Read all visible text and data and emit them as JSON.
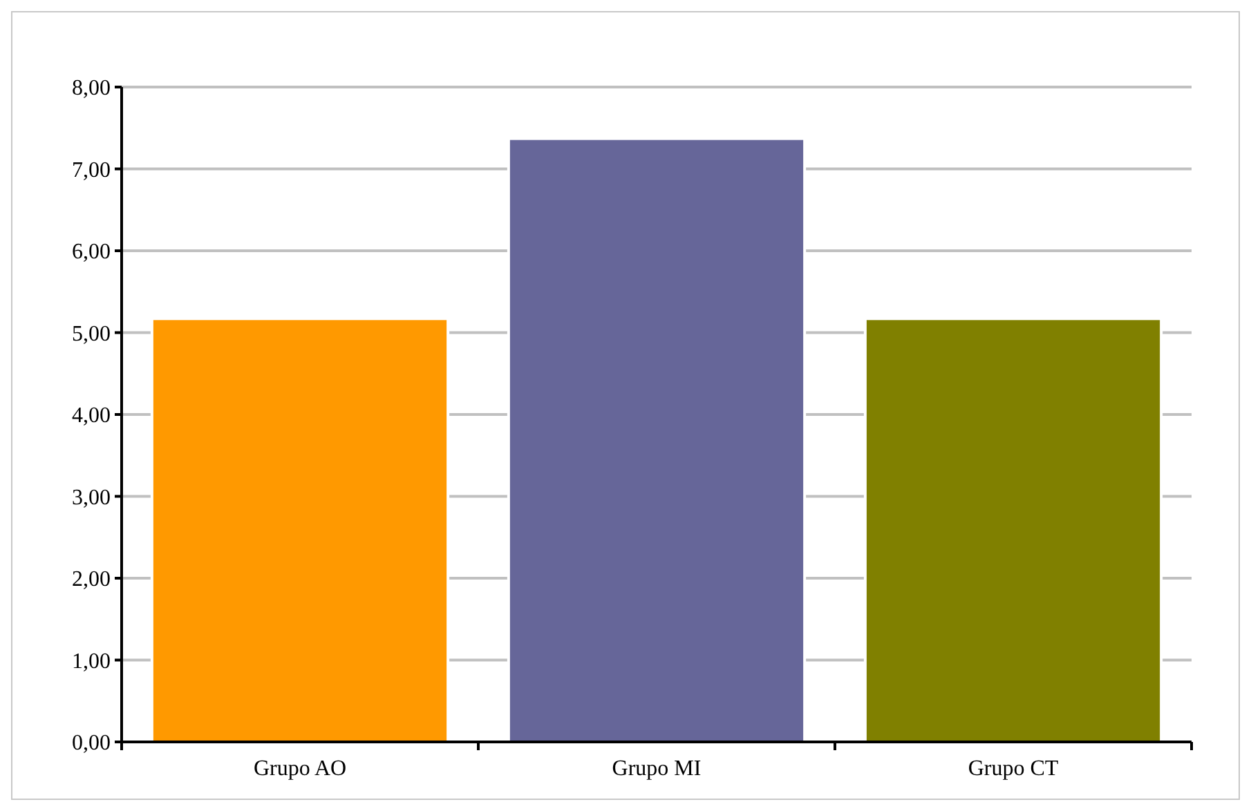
{
  "chart_data": {
    "type": "bar",
    "categories": [
      "Grupo AO",
      "Grupo MI",
      "Grupo CT"
    ],
    "values": [
      5.17,
      7.37,
      5.17
    ],
    "colors": [
      "#ff9900",
      "#666699",
      "#808000"
    ],
    "ylim": [
      0,
      8
    ],
    "yticks": [
      {
        "value": 0,
        "label": "0,00"
      },
      {
        "value": 1,
        "label": "1,00"
      },
      {
        "value": 2,
        "label": "2,00"
      },
      {
        "value": 3,
        "label": "3,00"
      },
      {
        "value": 4,
        "label": "4,00"
      },
      {
        "value": 5,
        "label": "5,00"
      },
      {
        "value": 6,
        "label": "6,00"
      },
      {
        "value": 7,
        "label": "7,00"
      },
      {
        "value": 8,
        "label": "8,00"
      }
    ],
    "grid": "y"
  }
}
